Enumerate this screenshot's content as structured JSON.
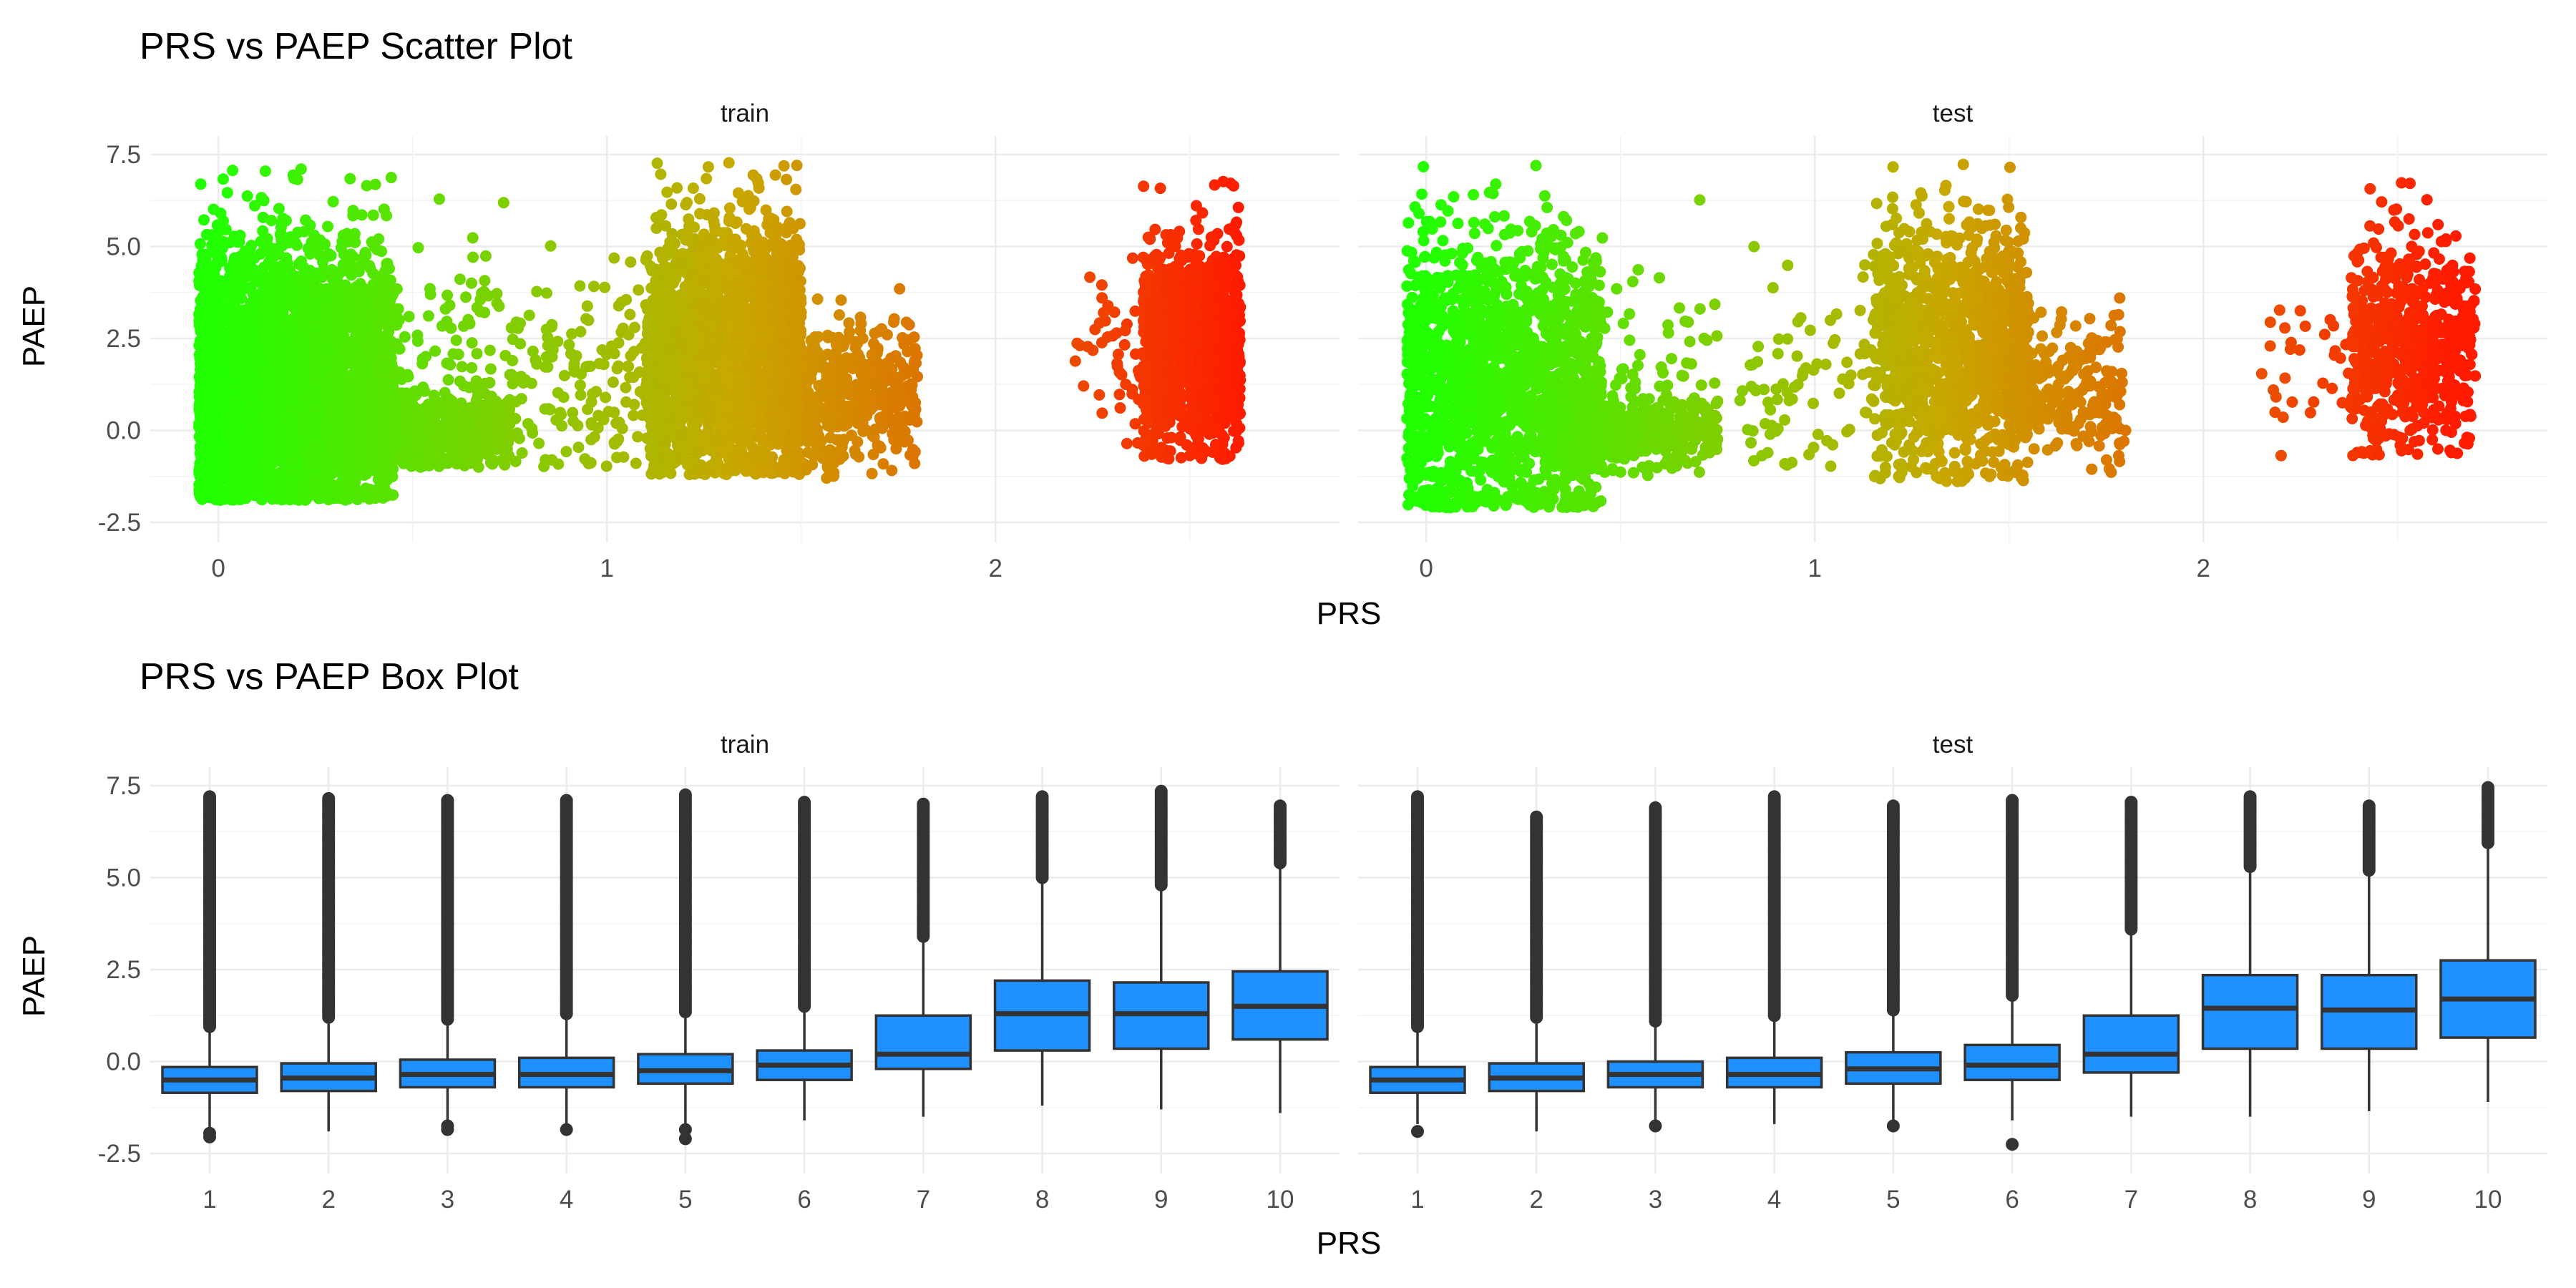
{
  "chart_data": [
    {
      "type": "scatter",
      "title": "PRS vs PAEP Scatter Plot",
      "xlabel": "PRS",
      "ylabel": "PAEP",
      "xlim": [
        -0.12,
        2.83
      ],
      "ylim": [
        -2.5,
        7.5
      ],
      "x_ticks": [
        0,
        1,
        2
      ],
      "x_tick_labels": [
        "0",
        "1",
        "2"
      ],
      "y_ticks": [
        -2.5,
        0,
        2.5,
        5,
        7.5
      ],
      "y_tick_labels": [
        "-2.5",
        "0.0",
        "2.5",
        "5.0",
        "7.5"
      ],
      "color_scale": {
        "low": "#22ff00",
        "mid": "#c8a800",
        "high": "#ff1a00",
        "domain": [
          0,
          2.65
        ]
      },
      "facets": [
        {
          "label": "train",
          "clusters": [
            {
              "x_min": -0.05,
              "x_max": 0.45,
              "y_min": -1.9,
              "y_max": 7.2,
              "y_mean": 1.3,
              "y_sd": 1.9,
              "x_shape": 1.1,
              "n": 3200
            },
            {
              "x_min": 0.3,
              "x_max": 0.75,
              "y_min": -1.0,
              "y_max": 1.6,
              "y_mean": 0.0,
              "y_sd": 0.5,
              "x_shape": 1.4,
              "n": 900
            },
            {
              "x_min": 0.45,
              "x_max": 0.75,
              "y_min": -0.8,
              "y_max": 6.8,
              "y_mean": 1.5,
              "y_sd": 1.8,
              "x_shape": 1.0,
              "n": 110
            },
            {
              "x_min": 0.75,
              "x_max": 1.15,
              "y_min": -1.0,
              "y_max": 5.8,
              "y_mean": 1.3,
              "y_sd": 1.5,
              "x_shape": 1.0,
              "n": 170
            },
            {
              "x_min": 1.1,
              "x_max": 1.5,
              "y_min": -1.2,
              "y_max": 7.3,
              "y_mean": 2.2,
              "y_sd": 1.7,
              "x_shape": 0.9,
              "n": 2200
            },
            {
              "x_min": 1.45,
              "x_max": 1.8,
              "y_min": -1.3,
              "y_max": 4.3,
              "y_mean": 1.0,
              "y_sd": 1.0,
              "x_shape": 1.3,
              "n": 600
            },
            {
              "x_min": 2.2,
              "x_max": 2.42,
              "y_min": -0.5,
              "y_max": 5.0,
              "y_mean": 2.0,
              "y_sd": 1.2,
              "x_shape": 1.0,
              "n": 60
            },
            {
              "x_min": 2.38,
              "x_max": 2.63,
              "y_min": -0.8,
              "y_max": 6.8,
              "y_mean": 2.3,
              "y_sd": 1.4,
              "x_shape": 1.0,
              "n": 1300
            }
          ]
        },
        {
          "label": "test",
          "clusters": [
            {
              "x_min": -0.05,
              "x_max": 0.45,
              "y_min": -2.1,
              "y_max": 7.2,
              "y_mean": 1.3,
              "y_sd": 1.9,
              "x_shape": 1.1,
              "n": 1700
            },
            {
              "x_min": 0.3,
              "x_max": 0.75,
              "y_min": -1.3,
              "y_max": 1.8,
              "y_mean": 0.0,
              "y_sd": 0.5,
              "x_shape": 1.4,
              "n": 450
            },
            {
              "x_min": 0.45,
              "x_max": 0.75,
              "y_min": -0.6,
              "y_max": 7.0,
              "y_mean": 1.5,
              "y_sd": 1.8,
              "x_shape": 1.0,
              "n": 60
            },
            {
              "x_min": 0.8,
              "x_max": 1.2,
              "y_min": -1.0,
              "y_max": 5.8,
              "y_mean": 1.4,
              "y_sd": 1.5,
              "x_shape": 1.0,
              "n": 90
            },
            {
              "x_min": 1.15,
              "x_max": 1.55,
              "y_min": -1.4,
              "y_max": 7.4,
              "y_mean": 2.2,
              "y_sd": 1.7,
              "x_shape": 0.9,
              "n": 1200
            },
            {
              "x_min": 1.5,
              "x_max": 1.8,
              "y_min": -1.2,
              "y_max": 5.3,
              "y_mean": 1.1,
              "y_sd": 1.0,
              "x_shape": 1.3,
              "n": 300
            },
            {
              "x_min": 2.15,
              "x_max": 2.4,
              "y_min": -0.8,
              "y_max": 4.5,
              "y_mean": 2.0,
              "y_sd": 1.3,
              "x_shape": 1.0,
              "n": 35
            },
            {
              "x_min": 2.38,
              "x_max": 2.7,
              "y_min": -0.7,
              "y_max": 6.8,
              "y_mean": 2.3,
              "y_sd": 1.4,
              "x_shape": 1.0,
              "n": 650
            }
          ]
        }
      ]
    },
    {
      "type": "box",
      "title": "PRS vs PAEP Box Plot",
      "xlabel": "PRS",
      "ylabel": "PAEP",
      "categories": [
        "1",
        "2",
        "3",
        "4",
        "5",
        "6",
        "7",
        "8",
        "9",
        "10"
      ],
      "ylim": [
        -2.5,
        7.5
      ],
      "y_ticks": [
        -2.5,
        0,
        2.5,
        5,
        7.5
      ],
      "y_tick_labels": [
        "-2.5",
        "0.0",
        "2.5",
        "5.0",
        "7.5"
      ],
      "box_fill": "#1e90ff",
      "line_color": "#333333",
      "facets": [
        {
          "label": "train",
          "boxes": [
            {
              "category": "1",
              "q1": -0.85,
              "median": -0.5,
              "q3": -0.15,
              "whisker_low": -1.9,
              "whisker_high": 0.9,
              "outliers_high": [
                0.95,
                7.2
              ],
              "outliers_low": [
                -2.05,
                -1.95
              ]
            },
            {
              "category": "2",
              "q1": -0.8,
              "median": -0.45,
              "q3": -0.05,
              "whisker_low": -1.9,
              "whisker_high": 1.15,
              "outliers_high": [
                1.2,
                7.15
              ],
              "outliers_low": []
            },
            {
              "category": "3",
              "q1": -0.7,
              "median": -0.35,
              "q3": 0.05,
              "whisker_low": -1.7,
              "whisker_high": 1.1,
              "outliers_high": [
                1.15,
                7.1
              ],
              "outliers_low": [
                -1.85,
                -1.75
              ]
            },
            {
              "category": "4",
              "q1": -0.7,
              "median": -0.35,
              "q3": 0.1,
              "whisker_low": -1.75,
              "whisker_high": 1.25,
              "outliers_high": [
                1.3,
                7.1
              ],
              "outliers_low": [
                -1.85
              ]
            },
            {
              "category": "5",
              "q1": -0.6,
              "median": -0.25,
              "q3": 0.2,
              "whisker_low": -1.7,
              "whisker_high": 1.3,
              "outliers_high": [
                1.35,
                7.25
              ],
              "outliers_low": [
                -1.85,
                -2.1
              ]
            },
            {
              "category": "6",
              "q1": -0.5,
              "median": -0.1,
              "q3": 0.3,
              "whisker_low": -1.6,
              "whisker_high": 1.45,
              "outliers_high": [
                1.5,
                7.05
              ],
              "outliers_low": []
            },
            {
              "category": "7",
              "q1": -0.2,
              "median": 0.2,
              "q3": 1.25,
              "whisker_low": -1.5,
              "whisker_high": 3.3,
              "outliers_high": [
                3.4,
                7.0
              ],
              "outliers_low": []
            },
            {
              "category": "8",
              "q1": 0.3,
              "median": 1.3,
              "q3": 2.2,
              "whisker_low": -1.2,
              "whisker_high": 4.9,
              "outliers_high": [
                5.0,
                7.2
              ],
              "outliers_low": []
            },
            {
              "category": "9",
              "q1": 0.35,
              "median": 1.3,
              "q3": 2.15,
              "whisker_low": -1.3,
              "whisker_high": 4.7,
              "outliers_high": [
                4.8,
                7.35
              ],
              "outliers_low": []
            },
            {
              "category": "10",
              "q1": 0.6,
              "median": 1.5,
              "q3": 2.45,
              "whisker_low": -1.4,
              "whisker_high": 5.3,
              "outliers_high": [
                5.4,
                6.95
              ],
              "outliers_low": []
            }
          ]
        },
        {
          "label": "test",
          "boxes": [
            {
              "category": "1",
              "q1": -0.85,
              "median": -0.5,
              "q3": -0.15,
              "whisker_low": -1.7,
              "whisker_high": 0.9,
              "outliers_high": [
                0.95,
                7.2
              ],
              "outliers_low": [
                -1.9
              ]
            },
            {
              "category": "2",
              "q1": -0.8,
              "median": -0.45,
              "q3": -0.05,
              "whisker_low": -1.9,
              "whisker_high": 1.15,
              "outliers_high": [
                1.2,
                6.65
              ],
              "outliers_low": []
            },
            {
              "category": "3",
              "q1": -0.7,
              "median": -0.35,
              "q3": 0.0,
              "whisker_low": -1.65,
              "whisker_high": 1.05,
              "outliers_high": [
                1.1,
                6.9
              ],
              "outliers_low": [
                -1.75
              ]
            },
            {
              "category": "4",
              "q1": -0.7,
              "median": -0.35,
              "q3": 0.1,
              "whisker_low": -1.7,
              "whisker_high": 1.2,
              "outliers_high": [
                1.25,
                7.2
              ],
              "outliers_low": []
            },
            {
              "category": "5",
              "q1": -0.6,
              "median": -0.2,
              "q3": 0.25,
              "whisker_low": -1.6,
              "whisker_high": 1.35,
              "outliers_high": [
                1.4,
                6.95
              ],
              "outliers_low": [
                -1.75
              ]
            },
            {
              "category": "6",
              "q1": -0.5,
              "median": -0.1,
              "q3": 0.45,
              "whisker_low": -1.6,
              "whisker_high": 1.75,
              "outliers_high": [
                1.8,
                7.1
              ],
              "outliers_low": [
                -2.25
              ]
            },
            {
              "category": "7",
              "q1": -0.3,
              "median": 0.2,
              "q3": 1.25,
              "whisker_low": -1.5,
              "whisker_high": 3.5,
              "outliers_high": [
                3.6,
                7.05
              ],
              "outliers_low": []
            },
            {
              "category": "8",
              "q1": 0.35,
              "median": 1.45,
              "q3": 2.35,
              "whisker_low": -1.5,
              "whisker_high": 5.2,
              "outliers_high": [
                5.3,
                7.2
              ],
              "outliers_low": []
            },
            {
              "category": "9",
              "q1": 0.35,
              "median": 1.4,
              "q3": 2.35,
              "whisker_low": -1.35,
              "whisker_high": 5.1,
              "outliers_high": [
                5.2,
                6.95
              ],
              "outliers_low": []
            },
            {
              "category": "10",
              "q1": 0.65,
              "median": 1.7,
              "q3": 2.75,
              "whisker_low": -1.1,
              "whisker_high": 5.85,
              "outliers_high": [
                5.95,
                7.45
              ],
              "outliers_low": []
            }
          ]
        }
      ]
    }
  ]
}
